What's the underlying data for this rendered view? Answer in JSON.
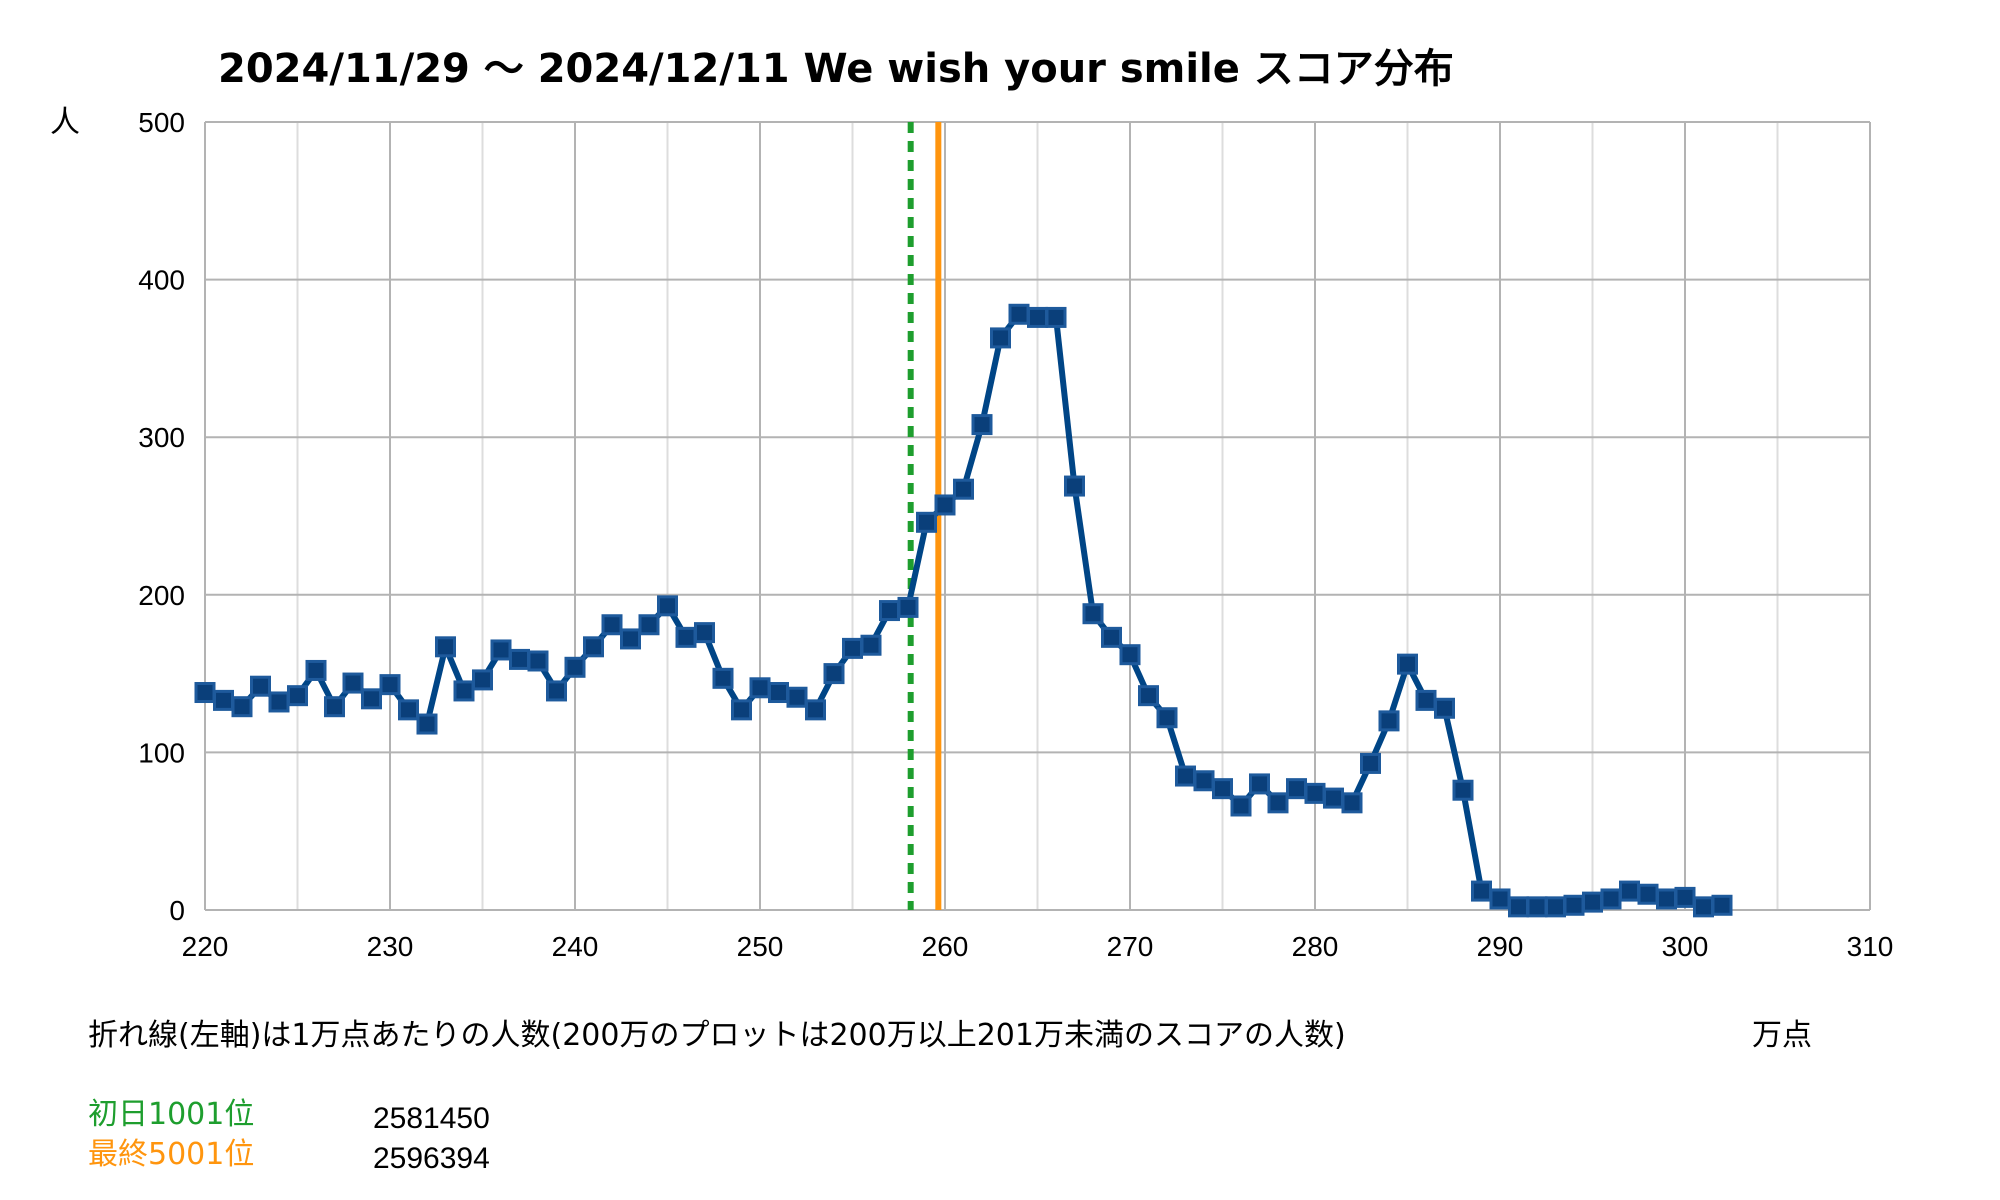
{
  "chart_data": {
    "type": "line",
    "title": "2024/11/29 〜 2024/12/11 We wish your smile スコア分布",
    "ylabel": "人",
    "xlabel": "万点",
    "xlim": [
      220,
      310
    ],
    "ylim": [
      0,
      500
    ],
    "x_ticks": [
      220,
      230,
      240,
      250,
      260,
      270,
      280,
      290,
      300,
      310
    ],
    "y_ticks": [
      0,
      100,
      200,
      300,
      400,
      500
    ],
    "grid": true,
    "series": [
      {
        "name": "人数",
        "color": "#004586",
        "x": [
          220,
          221,
          222,
          223,
          224,
          225,
          226,
          227,
          228,
          229,
          230,
          231,
          232,
          233,
          234,
          235,
          236,
          237,
          238,
          239,
          240,
          241,
          242,
          243,
          244,
          245,
          246,
          247,
          248,
          249,
          250,
          251,
          252,
          253,
          254,
          255,
          256,
          257,
          258,
          259,
          260,
          261,
          262,
          263,
          264,
          265,
          266,
          267,
          268,
          269,
          270,
          271,
          272,
          273,
          274,
          275,
          276,
          277,
          278,
          279,
          280,
          281,
          282,
          283,
          284,
          285,
          286,
          287,
          288,
          289,
          290,
          291,
          292,
          293,
          294,
          295,
          296,
          297,
          298,
          299,
          300,
          301,
          302
        ],
        "values": [
          138,
          133,
          129,
          142,
          132,
          136,
          152,
          129,
          144,
          134,
          143,
          127,
          118,
          167,
          139,
          146,
          165,
          159,
          158,
          139,
          154,
          167,
          181,
          172,
          181,
          193,
          173,
          176,
          147,
          127,
          141,
          138,
          135,
          127,
          150,
          166,
          168,
          190,
          192,
          246,
          257,
          267,
          308,
          363,
          378,
          376,
          376,
          269,
          188,
          173,
          162,
          136,
          122,
          85,
          82,
          77,
          66,
          80,
          68,
          77,
          74,
          71,
          68,
          93,
          120,
          156,
          133,
          128,
          76,
          12,
          7,
          2,
          2,
          2,
          3,
          5,
          7,
          12,
          10,
          7,
          8,
          2,
          3
        ]
      }
    ],
    "reference_lines": [
      {
        "name": "初日1001位",
        "value": 258.145,
        "color": "#1e9e2e",
        "style": "dashed"
      },
      {
        "name": "最終5001位",
        "value": 259.6394,
        "color": "#ff950e",
        "style": "solid"
      }
    ],
    "note": "折れ線(左軸)は1万点あたりの人数(200万のプロットは200万以上201万未満のスコアの人数)",
    "legend": [
      {
        "label": "初日1001位",
        "value": "2581450",
        "color": "#1e9e2e"
      },
      {
        "label": "最終5001位",
        "value": "2596394",
        "color": "#ff950e"
      }
    ]
  }
}
